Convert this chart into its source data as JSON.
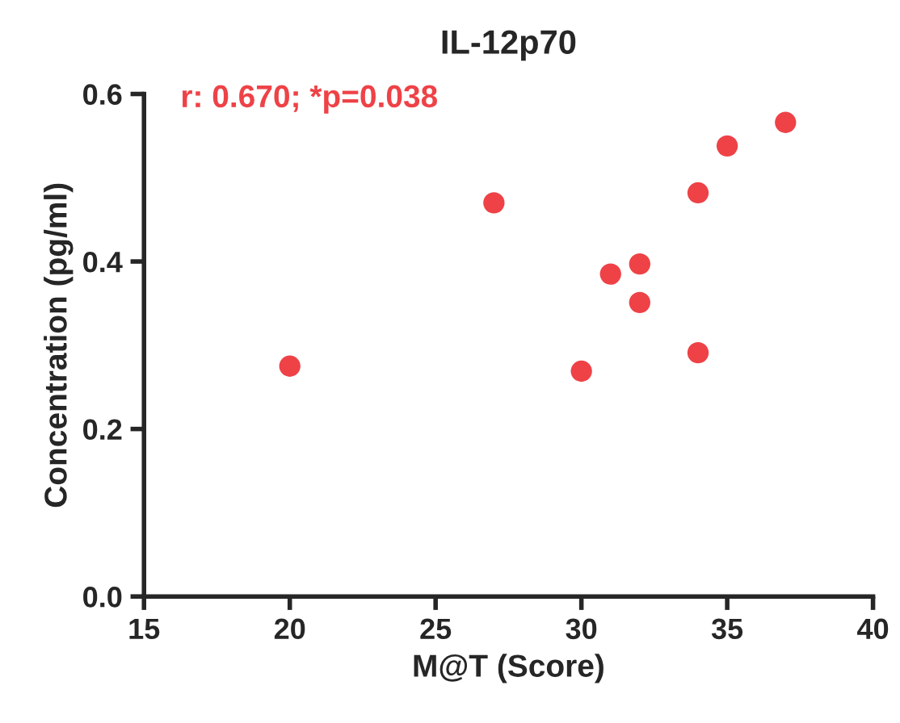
{
  "chart_data": {
    "type": "scatter",
    "title": "IL-12p70",
    "xlabel": "M@T (Score)",
    "ylabel": "Concentration (pg/ml)",
    "x": [
      20,
      27,
      30,
      31,
      32,
      32,
      34,
      34,
      35,
      37
    ],
    "series": [
      {
        "color": "#ee4247",
        "values": [
          0.275,
          0.47,
          0.269,
          0.385,
          0.397,
          0.351,
          0.482,
          0.291,
          0.538,
          0.566
        ]
      }
    ],
    "xlim": [
      15,
      40
    ],
    "xticks": [
      15,
      20,
      25,
      30,
      35,
      40
    ],
    "ylim": [
      0,
      0.6
    ],
    "yticks": [
      {
        "value": 0,
        "label": "0.0"
      },
      {
        "value": 0.2,
        "label": "0.2"
      },
      {
        "value": 0.4,
        "label": "0.4"
      },
      {
        "value": 0.6,
        "label": "0.6"
      }
    ],
    "marker": "circle",
    "grid": false,
    "legend": false,
    "annotations": [
      "r: 0.670; *p=0.038"
    ]
  }
}
